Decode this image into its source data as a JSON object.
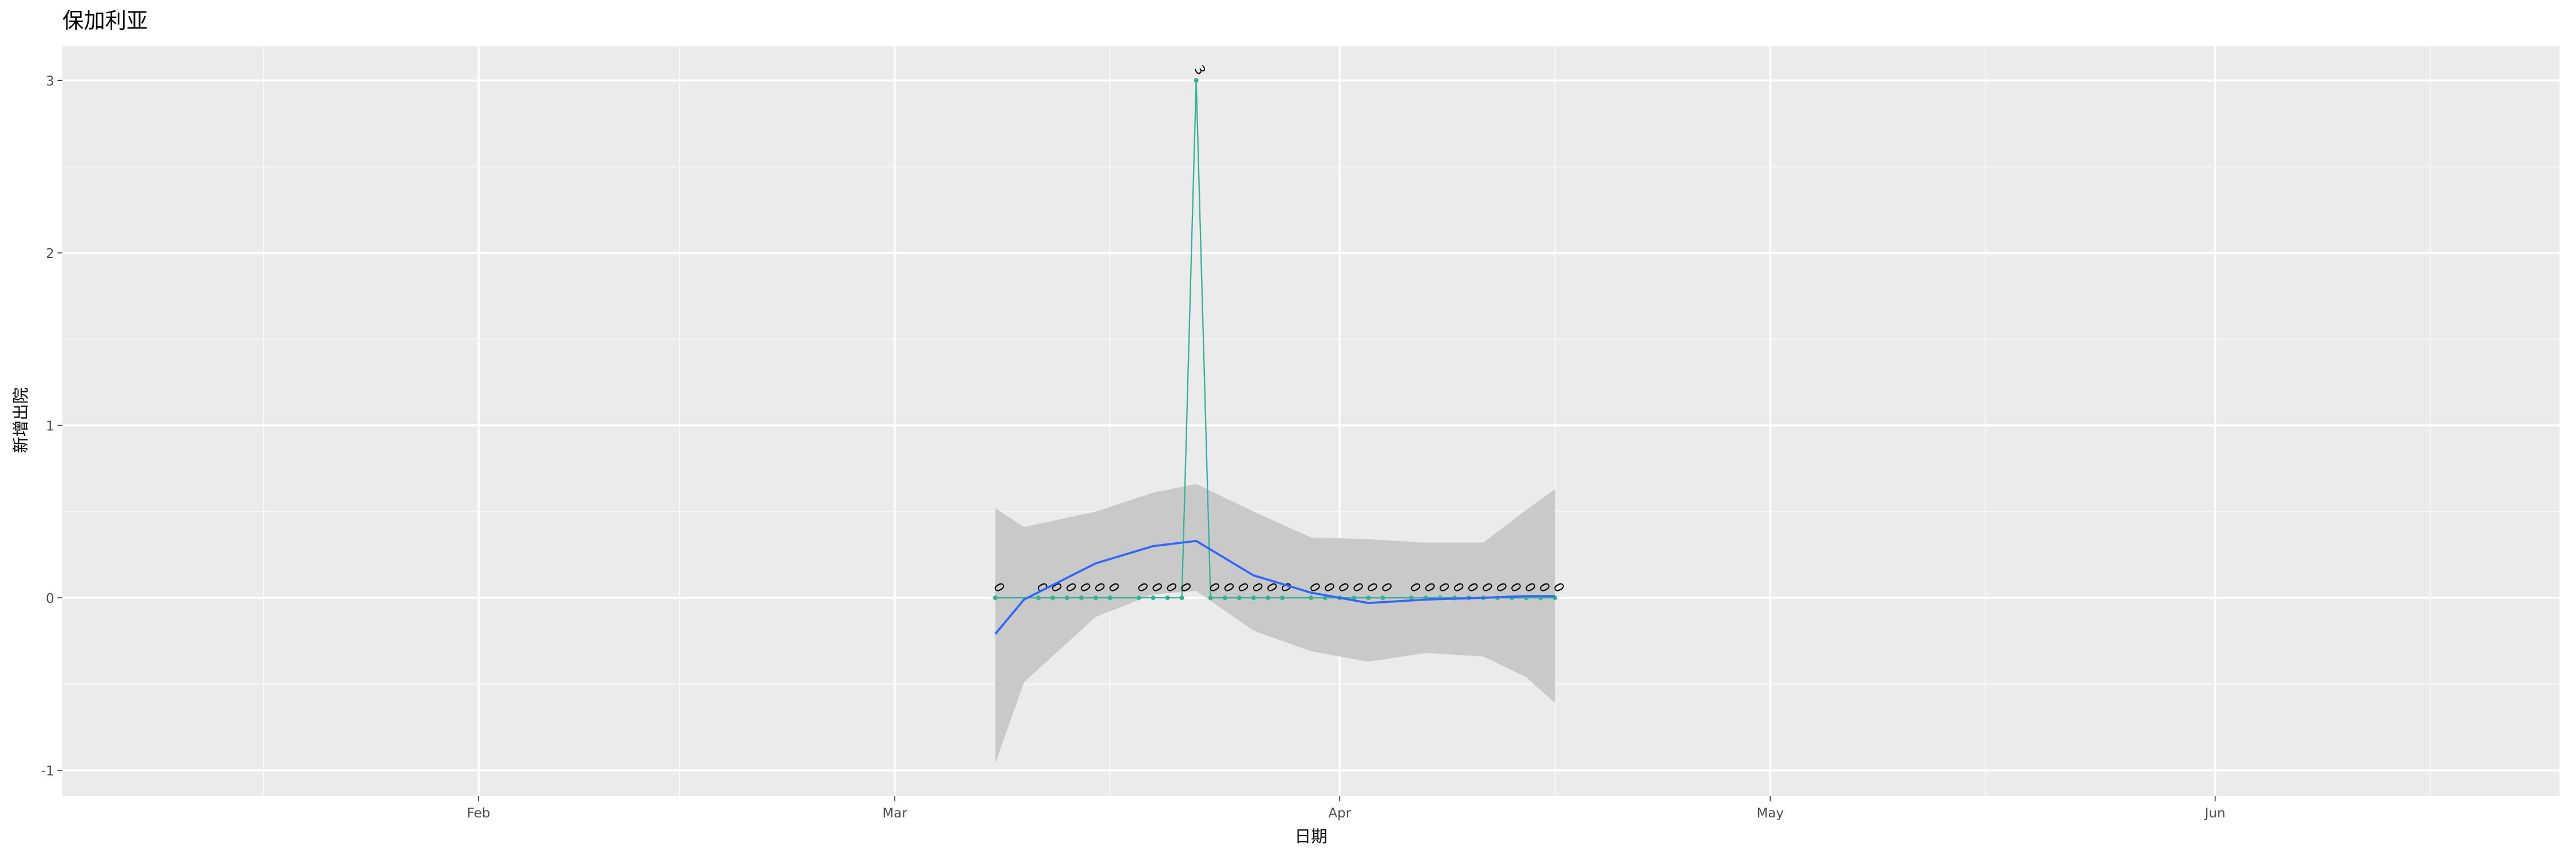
{
  "chart_data": {
    "type": "line",
    "title": "保加利亚",
    "x_label": "日期",
    "y_label": "新增出院",
    "x": [
      "03-08",
      "03-11",
      "03-12",
      "03-13",
      "03-14",
      "03-15",
      "03-16",
      "03-18",
      "03-19",
      "03-20",
      "03-21",
      "03-22",
      "03-23",
      "03-24",
      "03-25",
      "03-26",
      "03-27",
      "03-28",
      "03-30",
      "03-31",
      "04-01",
      "04-02",
      "04-03",
      "04-04",
      "04-06",
      "04-07",
      "04-08",
      "04-09",
      "04-10",
      "04-11",
      "04-12",
      "04-13",
      "04-14",
      "04-15",
      "04-16"
    ],
    "series": [
      {
        "color": "#35b294",
        "values": [
          0,
          0,
          0,
          0,
          0,
          0,
          0,
          0,
          0,
          0,
          0,
          3,
          0,
          0,
          0,
          0,
          0,
          0,
          0,
          0,
          0,
          0,
          0,
          0,
          0,
          0,
          0,
          0,
          0,
          0,
          0,
          0,
          0,
          0,
          0
        ]
      }
    ],
    "smooth": {
      "color": "#3366ff",
      "band_color": "#c9c9c9",
      "x": [
        "03-08",
        "03-10",
        "03-15",
        "03-19",
        "03-22",
        "03-26",
        "03-30",
        "04-03",
        "04-07",
        "04-11",
        "04-14",
        "04-16"
      ],
      "values": [
        -0.21,
        -0.01,
        0.2,
        0.3,
        0.33,
        0.13,
        0.03,
        -0.03,
        -0.01,
        0,
        0.01,
        0.01
      ],
      "lower": [
        -0.96,
        -0.49,
        -0.11,
        0.02,
        0.04,
        -0.19,
        -0.31,
        -0.37,
        -0.32,
        -0.34,
        -0.46,
        -0.61
      ],
      "upper": [
        0.52,
        0.41,
        0.5,
        0.61,
        0.66,
        0.5,
        0.35,
        0.34,
        0.32,
        0.32,
        0.51,
        0.63
      ]
    },
    "xlim": [
      "01-03",
      "06-25"
    ],
    "xticks": [
      {
        "value": "02-01",
        "label": "Feb"
      },
      {
        "value": "03-01",
        "label": "Mar"
      },
      {
        "value": "04-01",
        "label": "Apr"
      },
      {
        "value": "05-01",
        "label": "May"
      },
      {
        "value": "06-01",
        "label": "Jun"
      }
    ],
    "xminor": [
      "01-17",
      "02-15",
      "03-16",
      "04-16",
      "05-16",
      "06-16"
    ],
    "ylim": [
      -1.15,
      3.2
    ],
    "yticks": [
      -1,
      0,
      1,
      2,
      3
    ],
    "yminor": [
      -0.5,
      0.5,
      1.5,
      2.5
    ],
    "grid": true,
    "background": "#ebebeb"
  }
}
